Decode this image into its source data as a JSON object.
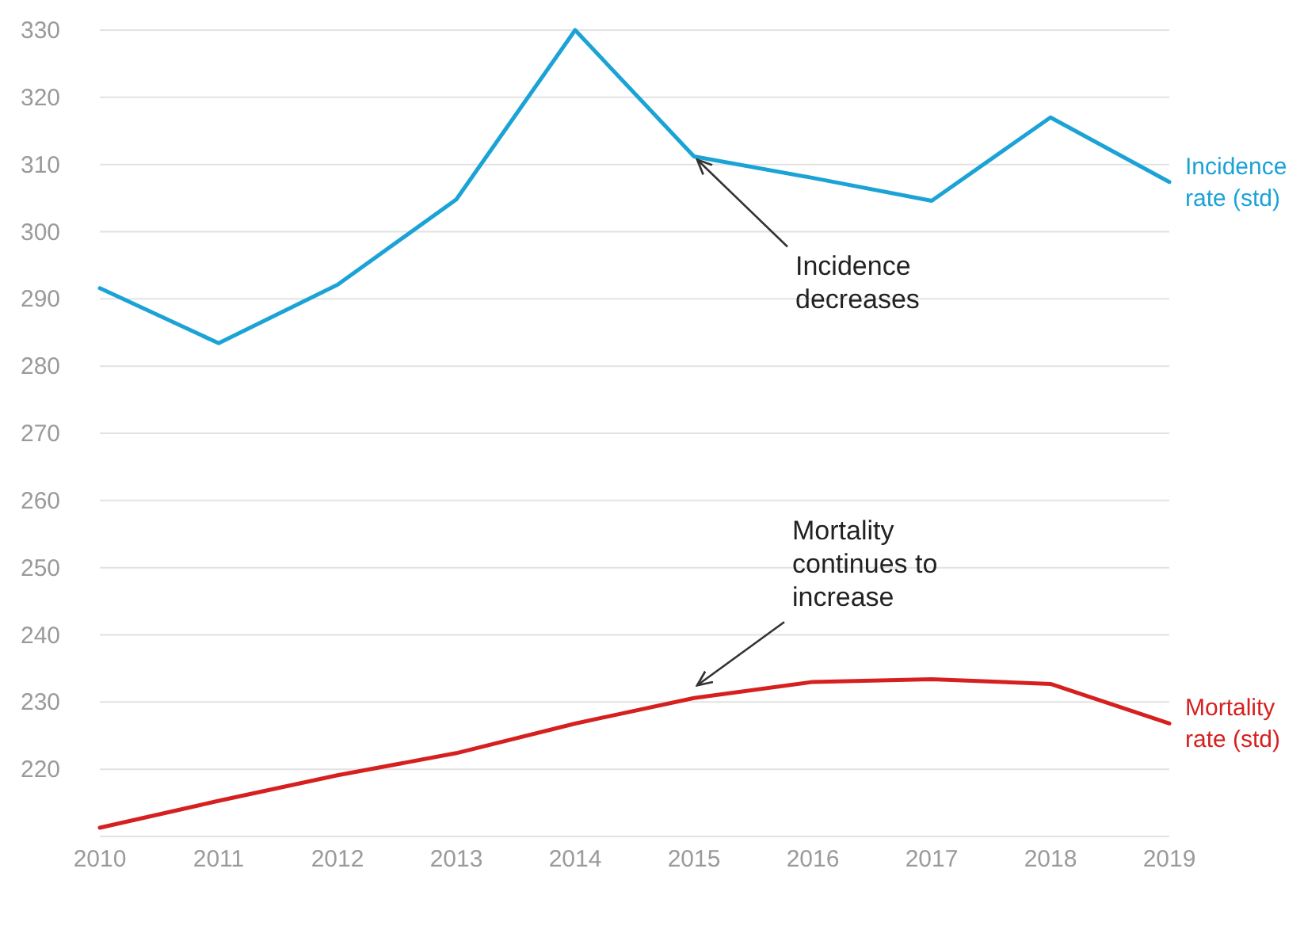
{
  "chart_data": {
    "type": "line",
    "x": [
      2010,
      2011,
      2012,
      2013,
      2014,
      2015,
      2016,
      2017,
      2018,
      2019
    ],
    "series": [
      {
        "name": "Incidence rate (std)",
        "color": "#1ba3d6",
        "values": [
          291.6,
          283.4,
          292.1,
          304.8,
          330,
          311.2,
          308,
          304.6,
          317,
          307.4
        ]
      },
      {
        "name": "Mortality rate (std)",
        "color": "#d62020",
        "values": [
          211.3,
          215.3,
          219.1,
          222.4,
          226.8,
          230.6,
          233,
          233.4,
          232.7,
          226.8
        ]
      }
    ],
    "xlim": [
      2010,
      2019
    ],
    "xticks": [
      2010,
      2011,
      2012,
      2013,
      2014,
      2015,
      2016,
      2017,
      2018,
      2019
    ],
    "ylim": [
      210,
      330
    ],
    "yticks": [
      220,
      230,
      240,
      250,
      260,
      270,
      280,
      290,
      300,
      310,
      320,
      330
    ],
    "grid": "y",
    "marker": "none",
    "line_style": "solid",
    "annotations": [
      {
        "text": "Incidence decreases",
        "x": 2015,
        "y": 311.2
      },
      {
        "text": "Mortality continues to increase",
        "x": 2015,
        "y": 230.6
      }
    ]
  }
}
